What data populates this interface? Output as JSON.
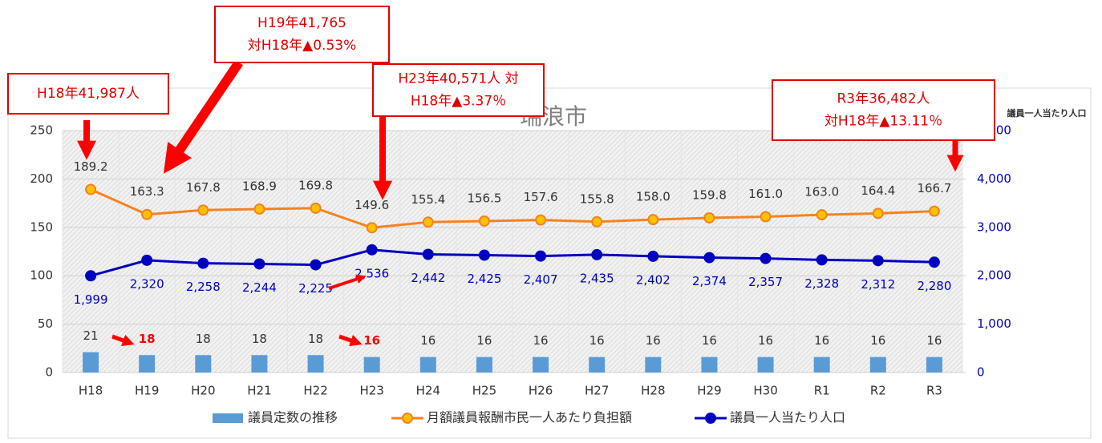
{
  "chart_data": {
    "type": "combo",
    "title": "瑞浪市",
    "y2_label": "議員一人当たり人口",
    "categories": [
      "H18",
      "H19",
      "H20",
      "H21",
      "H22",
      "H23",
      "H24",
      "H25",
      "H26",
      "H27",
      "H28",
      "H29",
      "H30",
      "R1",
      "R2",
      "R3"
    ],
    "ylim": [
      0,
      250
    ],
    "yticks": [
      0,
      50,
      100,
      150,
      200,
      250
    ],
    "y2lim": [
      0,
      5000
    ],
    "y2ticks": [
      0,
      {
        "value": 1000,
        "label": "1,000"
      },
      {
        "value": 2000,
        "label": "2,000"
      },
      {
        "value": 3000,
        "label": "3,000"
      },
      {
        "value": 4000,
        "label": "4,000"
      },
      {
        "value": 5000,
        "label": "5,000"
      }
    ],
    "grid": true,
    "legend": "bottom",
    "series": [
      {
        "name": "議員定数の推移",
        "kind": "bar",
        "color": "#5b9bd5",
        "values": [
          21,
          18,
          18,
          18,
          18,
          16,
          16,
          16,
          16,
          16,
          16,
          16,
          16,
          16,
          16,
          16
        ],
        "label_colors": [
          "#333333",
          "#ff0000",
          "#333333",
          "#333333",
          "#333333",
          "#ff0000",
          "#333333",
          "#333333",
          "#333333",
          "#333333",
          "#333333",
          "#333333",
          "#333333",
          "#333333",
          "#333333",
          "#333333"
        ]
      },
      {
        "name": "月額議員報酬市民一人あたり負担額",
        "kind": "line",
        "color": "#f58220",
        "marker_fill": "#ffc000",
        "values": [
          189.2,
          163.3,
          167.8,
          168.9,
          169.8,
          149.6,
          155.4,
          156.5,
          157.6,
          155.8,
          158.0,
          159.8,
          161.0,
          163.0,
          164.4,
          166.7
        ],
        "value_labels": [
          "189.2",
          "163.3",
          "167.8",
          "168.9",
          "169.8",
          "149.6",
          "155.4",
          "156.5",
          "157.6",
          "155.8",
          "158.0",
          "159.8",
          "161.0",
          "163.0",
          "164.4",
          "166.7"
        ]
      },
      {
        "name": "議員一人当たり人口",
        "kind": "line",
        "axis": "y2",
        "color": "#0000c0",
        "marker_fill": "#0000c0",
        "values": [
          1999,
          2320,
          2258,
          2244,
          2225,
          2536,
          2442,
          2425,
          2407,
          2435,
          2402,
          2374,
          2357,
          2328,
          2312,
          2280
        ],
        "value_labels": [
          "1,999",
          "2,320",
          "2,258",
          "2,244",
          "2,225",
          "2,536",
          "2,442",
          "2,425",
          "2,407",
          "2,435",
          "2,402",
          "2,374",
          "2,357",
          "2,328",
          "2,312",
          "2,280"
        ]
      }
    ],
    "annotations": [
      {
        "lines": [
          "H18年41,987人"
        ]
      },
      {
        "lines": [
          "H19年41,765",
          "対H18年▲0.53%"
        ]
      },
      {
        "lines": [
          "H23年40,571人 対",
          "H18年▲3.37％"
        ]
      },
      {
        "lines": [
          "R3年36,482人",
          "対H18年▲13.11％"
        ]
      }
    ]
  }
}
